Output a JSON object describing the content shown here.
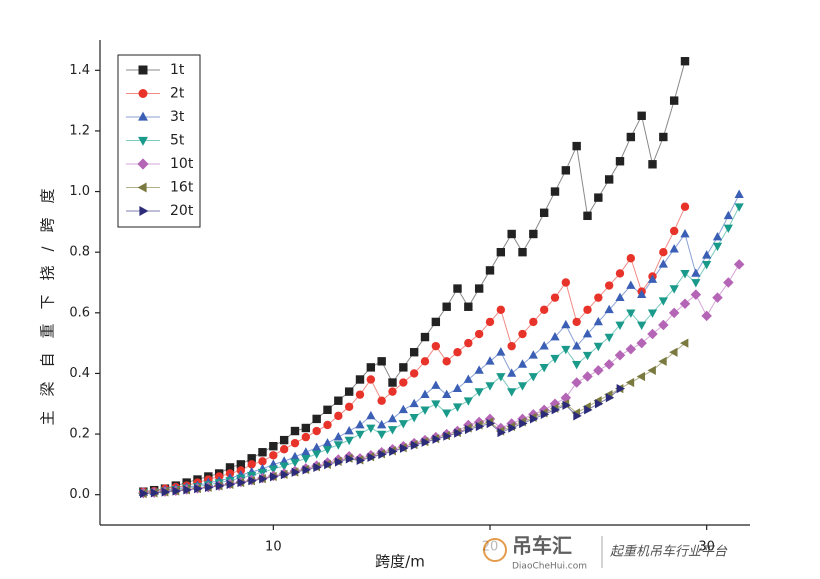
{
  "chart_data": {
    "type": "line",
    "x_label": "跨度/m",
    "y_label": "主梁自重下挠/跨度",
    "xlim": [
      2,
      32
    ],
    "ylim": [
      -0.1,
      1.5
    ],
    "xticks": [
      10,
      20,
      30
    ],
    "yticks": [
      {
        "value": 0,
        "label": "0.0"
      },
      0.2,
      0.4,
      0.6,
      0.8,
      {
        "value": 1,
        "label": "1.0"
      },
      1.2,
      1.4
    ],
    "x": [
      4,
      4.5,
      5,
      5.5,
      6,
      6.5,
      7,
      7.5,
      8,
      8.5,
      9,
      9.5,
      10,
      10.5,
      11,
      11.5,
      12,
      12.5,
      13,
      13.5,
      14,
      14.5,
      15,
      15.5,
      16,
      16.5,
      17,
      17.5,
      18,
      18.5,
      19,
      19.5,
      20,
      20.5,
      21,
      21.5,
      22,
      22.5,
      23,
      23.5,
      24,
      24.5,
      25,
      25.5,
      26,
      26.5,
      27,
      27.5,
      28,
      28.5,
      29,
      29.5,
      30,
      30.5,
      31,
      31.5
    ],
    "legend_position": "upper left",
    "series": [
      {
        "name": "1t",
        "color": "#222222",
        "line_color": "#888888",
        "marker": "square",
        "values": [
          0.01,
          0.015,
          0.02,
          0.03,
          0.04,
          0.05,
          0.06,
          0.07,
          0.09,
          0.1,
          0.12,
          0.14,
          0.16,
          0.18,
          0.21,
          0.22,
          0.25,
          0.28,
          0.31,
          0.34,
          0.38,
          0.42,
          0.44,
          0.37,
          0.42,
          0.47,
          0.52,
          0.57,
          0.62,
          0.68,
          0.62,
          0.68,
          0.74,
          0.8,
          0.86,
          0.8,
          0.86,
          0.93,
          1.0,
          1.07,
          1.15,
          0.92,
          0.98,
          1.04,
          1.1,
          1.18,
          1.25,
          1.09,
          1.18,
          1.3,
          1.43,
          null,
          null,
          null,
          null,
          null
        ]
      },
      {
        "name": "2t",
        "color": "#e8332b",
        "line_color": "#f08a84",
        "marker": "circle",
        "values": [
          0.01,
          0.012,
          0.02,
          0.025,
          0.03,
          0.04,
          0.05,
          0.06,
          0.07,
          0.08,
          0.1,
          0.11,
          0.13,
          0.15,
          0.17,
          0.19,
          0.21,
          0.23,
          0.26,
          0.29,
          0.33,
          0.38,
          0.31,
          0.34,
          0.37,
          0.4,
          0.44,
          0.49,
          0.44,
          0.47,
          0.5,
          0.53,
          0.57,
          0.61,
          0.49,
          0.53,
          0.57,
          0.61,
          0.65,
          0.7,
          0.57,
          0.61,
          0.65,
          0.69,
          0.73,
          0.78,
          0.67,
          0.72,
          0.8,
          0.87,
          0.95,
          null,
          null,
          null,
          null,
          null
        ]
      },
      {
        "name": "3t",
        "color": "#3a5fb5",
        "line_color": "#8aa0d6",
        "marker": "triangle-up",
        "values": [
          0.008,
          0.01,
          0.015,
          0.02,
          0.025,
          0.03,
          0.04,
          0.045,
          0.055,
          0.065,
          0.075,
          0.085,
          0.1,
          0.11,
          0.125,
          0.14,
          0.155,
          0.17,
          0.19,
          0.21,
          0.23,
          0.26,
          0.23,
          0.25,
          0.28,
          0.3,
          0.33,
          0.36,
          0.33,
          0.35,
          0.38,
          0.41,
          0.44,
          0.47,
          0.4,
          0.43,
          0.46,
          0.49,
          0.52,
          0.56,
          0.49,
          0.53,
          0.57,
          0.61,
          0.65,
          0.69,
          0.66,
          0.71,
          0.76,
          0.81,
          0.86,
          0.73,
          0.79,
          0.85,
          0.92,
          0.99
        ]
      },
      {
        "name": "5t",
        "color": "#1a9a8a",
        "line_color": "#7ccbc0",
        "marker": "triangle-down",
        "values": [
          0.007,
          0.009,
          0.013,
          0.017,
          0.022,
          0.027,
          0.033,
          0.04,
          0.047,
          0.055,
          0.064,
          0.074,
          0.085,
          0.095,
          0.107,
          0.12,
          0.135,
          0.15,
          0.165,
          0.18,
          0.2,
          0.22,
          0.2,
          0.215,
          0.235,
          0.255,
          0.28,
          0.3,
          0.27,
          0.29,
          0.31,
          0.34,
          0.36,
          0.39,
          0.34,
          0.36,
          0.39,
          0.42,
          0.45,
          0.48,
          0.43,
          0.46,
          0.49,
          0.52,
          0.56,
          0.6,
          0.56,
          0.6,
          0.64,
          0.68,
          0.73,
          0.7,
          0.76,
          0.82,
          0.88,
          0.95
        ]
      },
      {
        "name": "10t",
        "color": "#b565b5",
        "line_color": "#d7a6d7",
        "marker": "diamond",
        "values": [
          0.005,
          0.007,
          0.01,
          0.013,
          0.017,
          0.021,
          0.025,
          0.03,
          0.036,
          0.042,
          0.048,
          0.055,
          0.062,
          0.07,
          0.078,
          0.087,
          0.096,
          0.106,
          0.116,
          0.127,
          0.12,
          0.13,
          0.14,
          0.15,
          0.16,
          0.17,
          0.18,
          0.19,
          0.2,
          0.21,
          0.23,
          0.24,
          0.25,
          0.22,
          0.235,
          0.25,
          0.265,
          0.28,
          0.3,
          0.32,
          0.37,
          0.39,
          0.41,
          0.43,
          0.46,
          0.48,
          0.5,
          0.53,
          0.56,
          0.6,
          0.63,
          0.66,
          0.59,
          0.65,
          0.7,
          0.76
        ]
      },
      {
        "name": "16t",
        "color": "#7a7a40",
        "line_color": "#b0b088",
        "marker": "triangle-left",
        "values": [
          0.004,
          0.006,
          0.009,
          0.012,
          0.016,
          0.02,
          0.024,
          0.029,
          0.034,
          0.04,
          0.046,
          0.053,
          0.06,
          0.067,
          0.075,
          0.083,
          0.092,
          0.1,
          0.11,
          0.12,
          0.115,
          0.125,
          0.135,
          0.145,
          0.155,
          0.165,
          0.175,
          0.185,
          0.195,
          0.205,
          0.22,
          0.23,
          0.24,
          0.21,
          0.225,
          0.24,
          0.255,
          0.27,
          0.285,
          0.3,
          0.27,
          0.29,
          0.31,
          0.33,
          0.35,
          0.37,
          0.39,
          0.41,
          0.44,
          0.47,
          0.5,
          null,
          null,
          null,
          null,
          null
        ]
      },
      {
        "name": "20t",
        "color": "#2b2b7a",
        "line_color": "#7d7db0",
        "marker": "triangle-right",
        "values": [
          0.004,
          0.006,
          0.009,
          0.012,
          0.016,
          0.02,
          0.024,
          0.029,
          0.034,
          0.04,
          0.046,
          0.052,
          0.059,
          0.066,
          0.074,
          0.082,
          0.09,
          0.099,
          0.108,
          0.118,
          0.113,
          0.123,
          0.133,
          0.143,
          0.153,
          0.163,
          0.173,
          0.183,
          0.193,
          0.203,
          0.215,
          0.225,
          0.235,
          0.205,
          0.22,
          0.235,
          0.25,
          0.265,
          0.28,
          0.295,
          0.26,
          0.28,
          0.3,
          0.32,
          0.35,
          null,
          null,
          null,
          null,
          null,
          null,
          null,
          null,
          null,
          null,
          null
        ]
      }
    ]
  },
  "watermark": {
    "logo": "吊车汇",
    "site": "DiaoCheHui.com",
    "slogan": "起重机吊车行业平台"
  }
}
